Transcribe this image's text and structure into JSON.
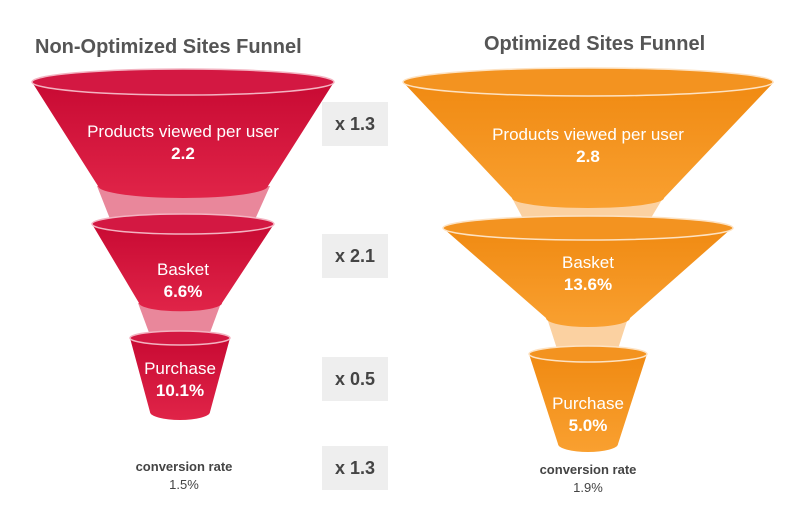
{
  "left_funnel": {
    "title": "Non-Optimized Sites Funnel",
    "color": "#d4123a",
    "stages": [
      {
        "label": "Products viewed per user",
        "value": "2.2"
      },
      {
        "label": "Basket",
        "value": "6.6%"
      },
      {
        "label": "Purchase",
        "value": "10.1%"
      }
    ],
    "conversion_label": "conversion rate",
    "conversion_value": "1.5%"
  },
  "right_funnel": {
    "title": "Optimized Sites Funnel",
    "color": "#f5901c",
    "stages": [
      {
        "label": "Products viewed per user",
        "value": "2.8"
      },
      {
        "label": "Basket",
        "value": "13.6%"
      },
      {
        "label": "Purchase",
        "value": "5.0%"
      }
    ],
    "conversion_label": "conversion rate",
    "conversion_value": "1.9%"
  },
  "multipliers": [
    "x 1.3",
    "x 2.1",
    "x 0.5",
    "x 1.3"
  ]
}
